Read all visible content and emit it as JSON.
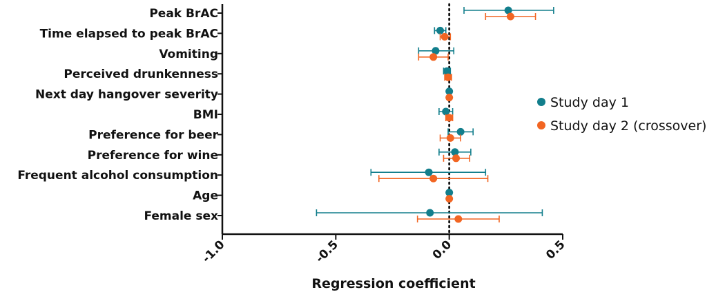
{
  "chart_data": {
    "type": "scatter",
    "title": "",
    "xlabel": "Regression coefficient",
    "ylabel": "",
    "xlim": [
      -1.0,
      0.5
    ],
    "xticks": [
      "-1.0",
      "-0.5",
      "0.0",
      "0.5"
    ],
    "reference_line": 0.0,
    "categories": [
      "Peak BrAC",
      "Time elapsed to peak BrAC",
      "Vomiting",
      "Perceived drunkenness",
      "Next day hangover severity",
      "BMI",
      "Preference for beer",
      "Preference for wine",
      "Frequent alcohol consumption",
      "Age",
      "Female sex"
    ],
    "legend_position": "right",
    "series": [
      {
        "name": "Study day 1",
        "color": "#127e8c",
        "values": [
          0.26,
          -0.04,
          -0.06,
          -0.01,
          0.0,
          -0.015,
          0.05,
          0.025,
          -0.09,
          0.0,
          -0.085
        ],
        "ci_low": [
          0.065,
          -0.065,
          -0.135,
          -0.025,
          -0.005,
          -0.045,
          -0.005,
          -0.045,
          -0.345,
          -0.005,
          -0.585
        ],
        "ci_high": [
          0.46,
          -0.015,
          0.02,
          0.005,
          0.005,
          0.015,
          0.105,
          0.095,
          0.16,
          0.005,
          0.41
        ]
      },
      {
        "name": "Study day 2 (crossover)",
        "color": "#f26522",
        "values": [
          0.27,
          -0.02,
          -0.07,
          -0.005,
          0.0,
          0.0,
          0.005,
          0.03,
          -0.07,
          0.0,
          0.04
        ],
        "ci_low": [
          0.16,
          -0.04,
          -0.135,
          -0.02,
          -0.005,
          -0.015,
          -0.04,
          -0.025,
          -0.31,
          -0.005,
          -0.14
        ],
        "ci_high": [
          0.38,
          0.005,
          -0.005,
          0.01,
          0.005,
          0.015,
          0.05,
          0.09,
          0.17,
          0.005,
          0.22
        ]
      }
    ]
  }
}
